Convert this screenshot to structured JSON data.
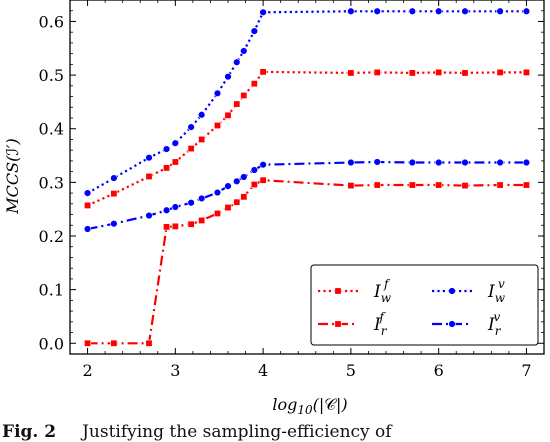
{
  "chart_data": {
    "type": "line",
    "xlabel": "log10(|C|)",
    "ylabel": "MCCS(I')",
    "xlim": [
      1.8,
      7.2
    ],
    "ylim": [
      -0.02,
      0.64
    ],
    "xticks": [
      2,
      3,
      4,
      5,
      6,
      7
    ],
    "yticks": [
      0.0,
      0.1,
      0.2,
      0.3,
      0.4,
      0.5,
      0.6
    ],
    "ytick_labels": [
      "0.0",
      "0.1",
      "0.2",
      "0.3",
      "0.4",
      "0.5",
      "0.6"
    ],
    "legend_placement": "lower-right",
    "grid": false,
    "series": [
      {
        "name": "I_w^f",
        "legend_main": "I",
        "legend_sub": "w",
        "legend_sup": "f",
        "color": "#ff0000",
        "linestyle": "dotted",
        "marker": "square",
        "x": [
          2.0,
          2.3,
          2.7,
          2.9,
          3.0,
          3.18,
          3.3,
          3.48,
          3.6,
          3.7,
          3.78,
          3.9,
          4.0,
          5.0,
          5.3,
          5.7,
          6.0,
          6.3,
          6.7,
          7.0
        ],
        "y": [
          0.257,
          0.279,
          0.311,
          0.327,
          0.338,
          0.363,
          0.38,
          0.406,
          0.425,
          0.446,
          0.462,
          0.484,
          0.506,
          0.504,
          0.505,
          0.504,
          0.505,
          0.504,
          0.505,
          0.505
        ]
      },
      {
        "name": "I_w^v",
        "legend_main": "I",
        "legend_sub": "w",
        "legend_sup": "v",
        "color": "#0000ff",
        "linestyle": "dotted",
        "marker": "circle",
        "x": [
          2.0,
          2.3,
          2.7,
          2.9,
          3.0,
          3.18,
          3.3,
          3.48,
          3.6,
          3.7,
          3.78,
          3.9,
          4.0,
          5.0,
          5.3,
          5.7,
          6.0,
          6.3,
          6.7,
          7.0
        ],
        "y": [
          0.28,
          0.308,
          0.346,
          0.362,
          0.373,
          0.403,
          0.426,
          0.466,
          0.497,
          0.524,
          0.545,
          0.582,
          0.617,
          0.619,
          0.619,
          0.619,
          0.619,
          0.619,
          0.619,
          0.619
        ]
      },
      {
        "name": "I_r^f",
        "legend_main": "I",
        "legend_sub": "r",
        "legend_sup": "f",
        "color": "#ff0000",
        "linestyle": "dashdot",
        "marker": "square",
        "x": [
          2.0,
          2.3,
          2.7,
          2.9,
          3.0,
          3.18,
          3.3,
          3.48,
          3.6,
          3.7,
          3.78,
          3.9,
          4.0,
          5.0,
          5.3,
          5.7,
          6.0,
          6.3,
          6.7,
          7.0
        ],
        "y": [
          0.0,
          0.0,
          0.0,
          0.217,
          0.218,
          0.222,
          0.229,
          0.242,
          0.253,
          0.263,
          0.273,
          0.296,
          0.304,
          0.294,
          0.295,
          0.295,
          0.295,
          0.294,
          0.295,
          0.295
        ]
      },
      {
        "name": "I_r^v",
        "legend_main": "I",
        "legend_sub": "r",
        "legend_sup": "v",
        "color": "#0000ff",
        "linestyle": "dashdot",
        "marker": "circle",
        "x": [
          2.0,
          2.3,
          2.7,
          2.9,
          3.0,
          3.18,
          3.3,
          3.48,
          3.6,
          3.7,
          3.78,
          3.9,
          4.0,
          5.0,
          5.3,
          5.7,
          6.0,
          6.3,
          6.7,
          7.0
        ],
        "y": [
          0.213,
          0.223,
          0.238,
          0.248,
          0.254,
          0.262,
          0.27,
          0.281,
          0.293,
          0.302,
          0.31,
          0.323,
          0.333,
          0.337,
          0.338,
          0.337,
          0.337,
          0.337,
          0.337,
          0.337
        ]
      }
    ]
  },
  "caption": {
    "label": "Fig. 2",
    "text": "Justifying the sampling-efficiency of"
  }
}
